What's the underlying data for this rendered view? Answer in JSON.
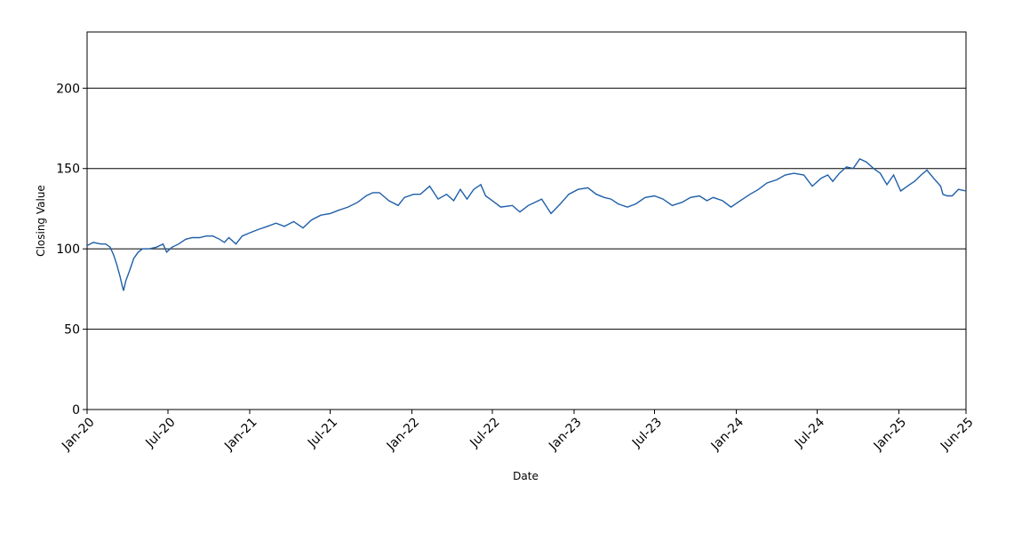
{
  "chart_data": {
    "type": "line",
    "title": "",
    "xlabel": "Date",
    "ylabel": "Closing Value",
    "xlim": [
      "2020-01-01",
      "2025-06-01"
    ],
    "ylim": [
      0,
      235
    ],
    "y_ticks": [
      0,
      50,
      100,
      150,
      200
    ],
    "x_ticks": [
      {
        "date": "2020-01-01",
        "label": "Jan-20"
      },
      {
        "date": "2020-07-01",
        "label": "Jul-20"
      },
      {
        "date": "2021-01-01",
        "label": "Jan-21"
      },
      {
        "date": "2021-07-01",
        "label": "Jul-21"
      },
      {
        "date": "2022-01-01",
        "label": "Jan-22"
      },
      {
        "date": "2022-07-01",
        "label": "Jul-22"
      },
      {
        "date": "2023-01-01",
        "label": "Jan-23"
      },
      {
        "date": "2023-07-01",
        "label": "Jul-23"
      },
      {
        "date": "2024-01-01",
        "label": "Jan-24"
      },
      {
        "date": "2024-07-01",
        "label": "Jul-24"
      },
      {
        "date": "2025-01-01",
        "label": "Jan-25"
      },
      {
        "date": "2025-06-01",
        "label": "Jun-25"
      }
    ],
    "grid": "horizontal",
    "legend": "none",
    "line_color": "#1f5fa8",
    "series": [
      {
        "x": [
          "2020-01-01",
          "2020-01-15",
          "2020-02-01",
          "2020-02-12",
          "2020-02-22",
          "2020-03-01",
          "2020-03-08",
          "2020-03-15",
          "2020-03-20",
          "2020-03-23",
          "2020-03-28",
          "2020-04-05",
          "2020-04-15",
          "2020-04-25",
          "2020-05-05",
          "2020-05-20",
          "2020-06-05",
          "2020-06-20",
          "2020-06-28",
          "2020-07-10",
          "2020-07-25",
          "2020-08-10",
          "2020-08-25",
          "2020-09-10",
          "2020-09-25",
          "2020-10-10",
          "2020-10-25",
          "2020-11-05",
          "2020-11-15",
          "2020-12-01",
          "2020-12-15",
          "2021-01-01",
          "2021-01-20",
          "2021-02-10",
          "2021-03-01",
          "2021-03-20",
          "2021-04-10",
          "2021-05-01",
          "2021-05-20",
          "2021-06-10",
          "2021-07-01",
          "2021-07-20",
          "2021-08-10",
          "2021-09-01",
          "2021-09-20",
          "2021-10-05",
          "2021-10-20",
          "2021-11-10",
          "2021-12-01",
          "2021-12-15",
          "2022-01-05",
          "2022-01-20",
          "2022-02-10",
          "2022-03-01",
          "2022-03-20",
          "2022-04-05",
          "2022-04-20",
          "2022-05-05",
          "2022-05-20",
          "2022-06-05",
          "2022-06-16",
          "2022-07-01",
          "2022-07-20",
          "2022-08-15",
          "2022-09-01",
          "2022-09-20",
          "2022-10-05",
          "2022-10-20",
          "2022-11-10",
          "2022-12-01",
          "2022-12-20",
          "2023-01-10",
          "2023-02-01",
          "2023-02-20",
          "2023-03-10",
          "2023-03-25",
          "2023-04-10",
          "2023-05-01",
          "2023-05-20",
          "2023-06-10",
          "2023-07-01",
          "2023-07-20",
          "2023-08-10",
          "2023-09-01",
          "2023-09-20",
          "2023-10-10",
          "2023-10-27",
          "2023-11-10",
          "2023-12-01",
          "2023-12-20",
          "2024-01-10",
          "2024-02-01",
          "2024-02-20",
          "2024-03-10",
          "2024-04-01",
          "2024-04-20",
          "2024-05-10",
          "2024-06-01",
          "2024-06-20",
          "2024-07-10",
          "2024-07-25",
          "2024-08-05",
          "2024-08-20",
          "2024-09-05",
          "2024-09-20",
          "2024-10-05",
          "2024-10-20",
          "2024-11-05",
          "2024-11-20",
          "2024-12-05",
          "2024-12-20",
          "2025-01-05",
          "2025-01-20",
          "2025-02-05",
          "2025-02-20",
          "2025-03-05",
          "2025-03-20",
          "2025-04-05",
          "2025-04-10",
          "2025-04-20",
          "2025-05-01",
          "2025-05-15",
          "2025-06-01"
        ],
        "y": [
          102,
          104,
          103,
          103,
          101,
          96,
          90,
          83,
          77,
          74,
          80,
          86,
          94,
          98,
          100,
          100,
          101,
          103,
          98,
          101,
          103,
          106,
          107,
          107,
          108,
          108,
          106,
          104,
          107,
          103,
          108,
          110,
          112,
          114,
          116,
          114,
          117,
          113,
          118,
          121,
          122,
          124,
          126,
          129,
          133,
          135,
          135,
          130,
          127,
          132,
          134,
          134,
          139,
          131,
          134,
          130,
          137,
          131,
          137,
          140,
          133,
          130,
          126,
          127,
          123,
          127,
          129,
          131,
          122,
          128,
          134,
          137,
          138,
          134,
          132,
          131,
          128,
          126,
          128,
          132,
          133,
          131,
          127,
          129,
          132,
          133,
          130,
          132,
          130,
          126,
          130,
          134,
          137,
          141,
          143,
          146,
          147,
          146,
          139,
          144,
          146,
          142,
          147,
          151,
          150,
          156,
          154,
          150,
          147,
          140,
          146,
          136,
          139,
          142,
          146,
          149,
          144,
          139,
          134,
          133,
          133,
          137,
          136
        ]
      }
    ]
  }
}
